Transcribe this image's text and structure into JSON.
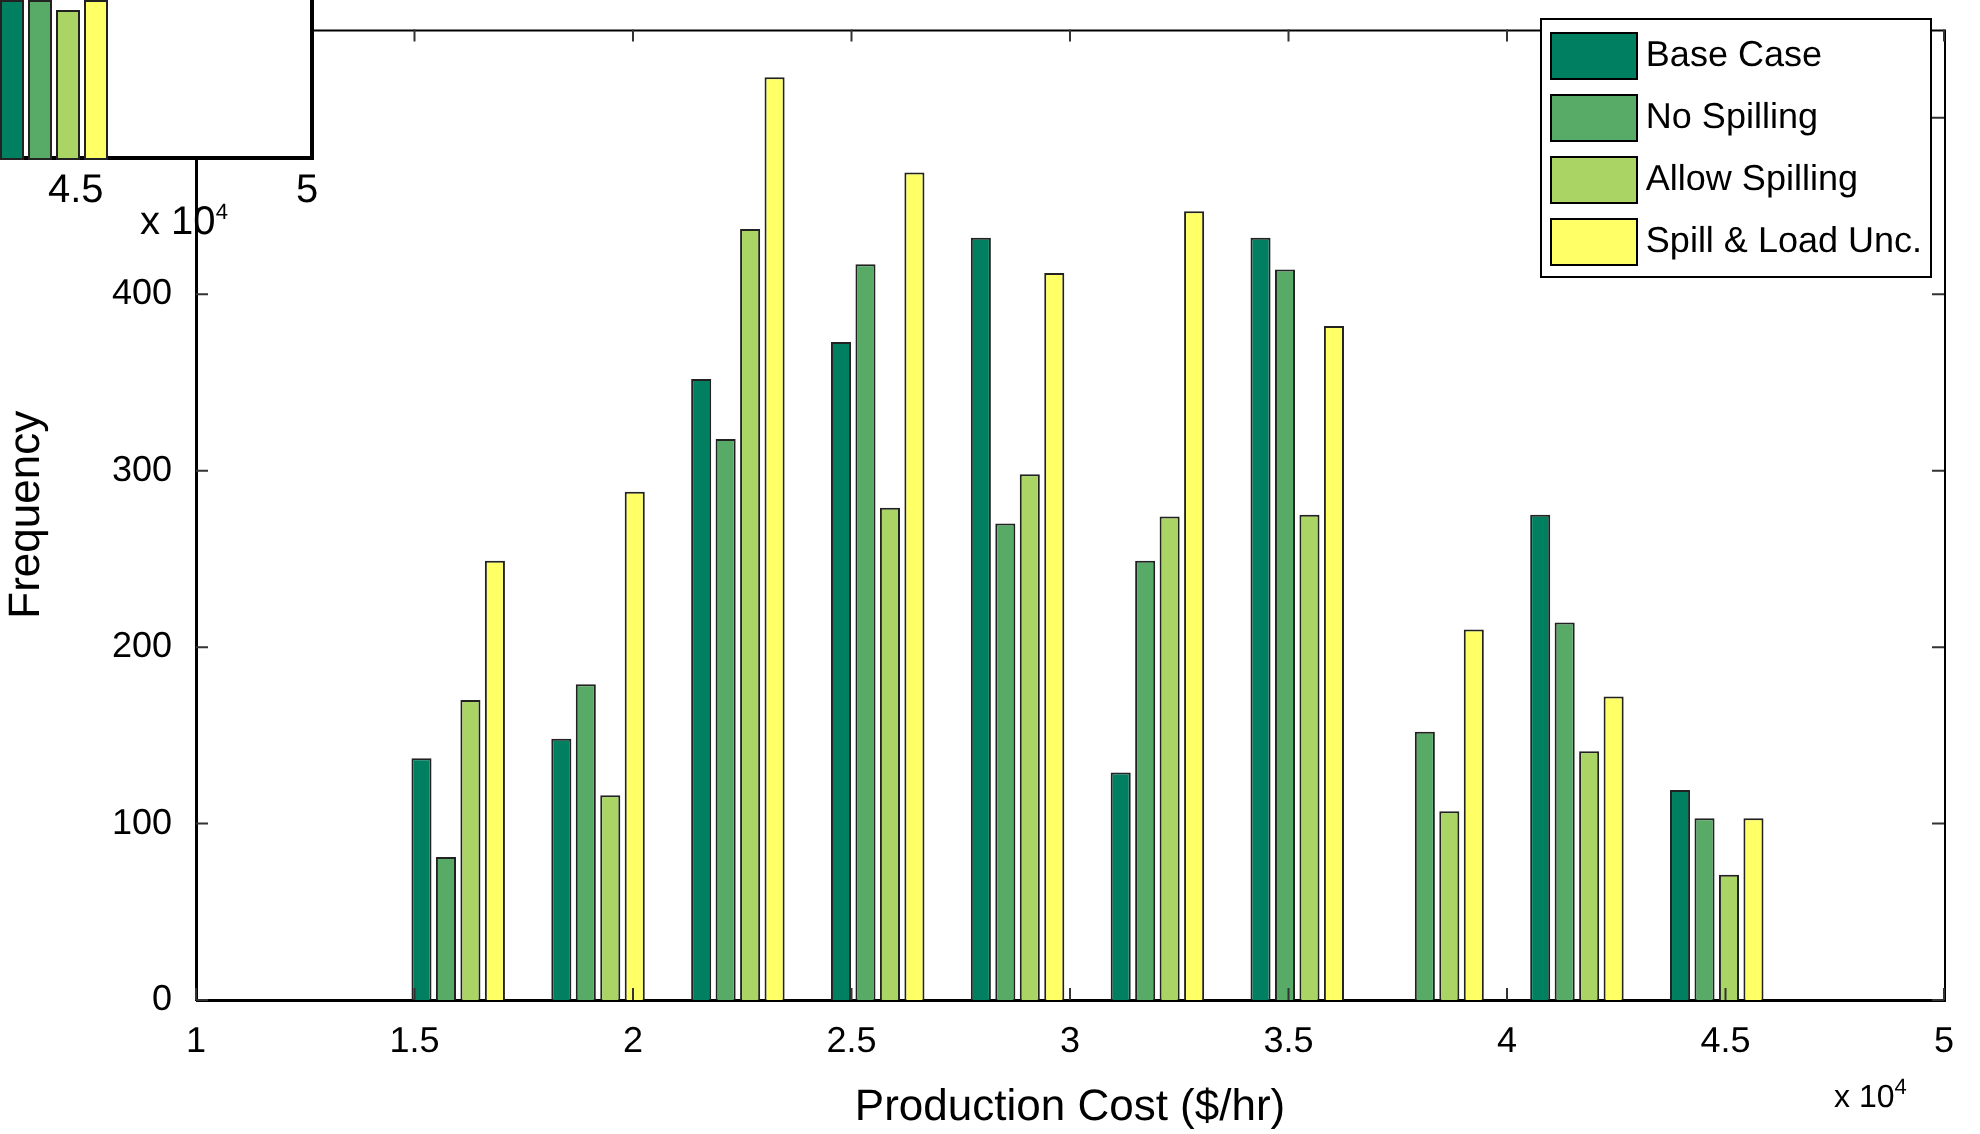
{
  "chart_data": {
    "type": "bar",
    "xlabel": "Production Cost ($/hr)",
    "ylabel": "Frequency",
    "x": [
      1.6,
      1.92,
      2.24,
      2.56,
      2.88,
      3.2,
      3.52,
      3.84,
      4.16,
      4.48
    ],
    "series": [
      {
        "name": "Base Case",
        "color": "#008060",
        "values": [
          137,
          148,
          352,
          373,
          432,
          129,
          432,
          0,
          275,
          119
        ]
      },
      {
        "name": "No Spilling",
        "color": "#57ab67",
        "values": [
          81,
          179,
          318,
          417,
          270,
          249,
          414,
          152,
          214,
          103
        ]
      },
      {
        "name": "Allow Spilling",
        "color": "#aad565",
        "values": [
          170,
          116,
          437,
          279,
          298,
          274,
          275,
          107,
          141,
          71
        ]
      },
      {
        "name": "Spill & Load Unc.",
        "color": "#ffff66",
        "values": [
          249,
          288,
          523,
          469,
          412,
          447,
          382,
          210,
          172,
          103
        ]
      }
    ],
    "xlim": [
      1,
      5
    ],
    "xticks": [
      1,
      1.5,
      2,
      2.5,
      3,
      3.5,
      4,
      4.5,
      5
    ],
    "ylim": [
      0,
      550
    ],
    "yticks": [
      0,
      100,
      200,
      300,
      400,
      {
        "value": 500,
        "label": null
      }
    ],
    "annotations": [
      "x 10$^{4}$",
      "4.5",
      "5",
      "x 10$^{4}$"
    ],
    "legend": "top right",
    "grid": false
  }
}
